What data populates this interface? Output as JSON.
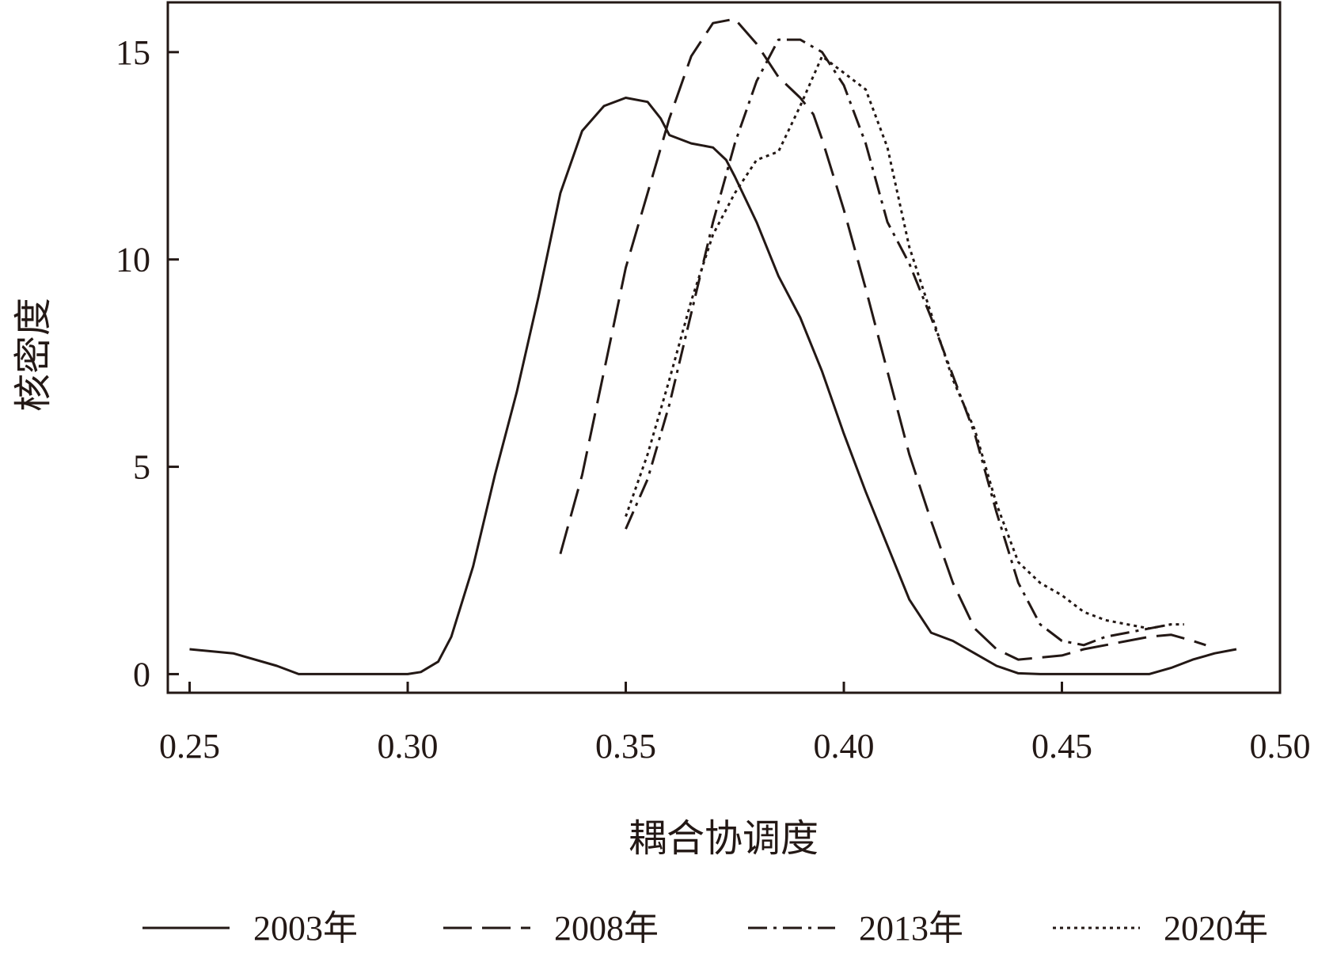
{
  "chart_data": {
    "type": "line",
    "title": "",
    "xlabel": "耦合协调度",
    "ylabel": "核密度",
    "xlim": [
      0.245,
      0.5
    ],
    "ylim": [
      -0.45,
      16.2
    ],
    "x_ticks": [
      0.25,
      0.3,
      0.35,
      0.4,
      0.45,
      0.5
    ],
    "x_tick_labels": [
      "0.25",
      "0.30",
      "0.35",
      "0.40",
      "0.45",
      "0.50"
    ],
    "y_ticks": [
      0,
      5,
      10,
      15
    ],
    "y_tick_labels": [
      "0",
      "5",
      "10",
      "15"
    ],
    "grid": false,
    "legend_position": "bottom",
    "series": [
      {
        "name": "2003年",
        "dash": "solid",
        "x": [
          0.25,
          0.26,
          0.27,
          0.275,
          0.3,
          0.303,
          0.307,
          0.31,
          0.315,
          0.32,
          0.325,
          0.33,
          0.335,
          0.34,
          0.345,
          0.35,
          0.355,
          0.358,
          0.36,
          0.365,
          0.37,
          0.373,
          0.375,
          0.38,
          0.385,
          0.39,
          0.395,
          0.4,
          0.405,
          0.41,
          0.415,
          0.42,
          0.425,
          0.43,
          0.435,
          0.44,
          0.445,
          0.45,
          0.46,
          0.47,
          0.475,
          0.48,
          0.485,
          0.49
        ],
        "y": [
          0.6,
          0.5,
          0.2,
          0.0,
          0.0,
          0.05,
          0.3,
          0.9,
          2.6,
          4.8,
          6.8,
          9.1,
          11.6,
          13.1,
          13.7,
          13.9,
          13.8,
          13.4,
          13.0,
          12.8,
          12.7,
          12.4,
          12.0,
          10.9,
          9.6,
          8.6,
          7.3,
          5.8,
          4.4,
          3.1,
          1.8,
          1.0,
          0.8,
          0.5,
          0.2,
          0.02,
          0.0,
          0.0,
          0.0,
          0.0,
          0.15,
          0.35,
          0.5,
          0.6
        ]
      },
      {
        "name": "2008年",
        "dash": "long-dash",
        "x": [
          0.335,
          0.34,
          0.345,
          0.35,
          0.355,
          0.36,
          0.365,
          0.37,
          0.375,
          0.38,
          0.385,
          0.39,
          0.393,
          0.395,
          0.4,
          0.405,
          0.41,
          0.415,
          0.42,
          0.425,
          0.43,
          0.435,
          0.44,
          0.445,
          0.45,
          0.455,
          0.46,
          0.465,
          0.47,
          0.475,
          0.48,
          0.483
        ],
        "y": [
          2.9,
          4.8,
          7.3,
          9.8,
          11.6,
          13.4,
          14.9,
          15.7,
          15.8,
          15.2,
          14.4,
          13.9,
          13.5,
          12.9,
          11.2,
          9.3,
          7.3,
          5.3,
          3.7,
          2.2,
          1.1,
          0.6,
          0.35,
          0.4,
          0.45,
          0.6,
          0.7,
          0.8,
          0.9,
          0.95,
          0.8,
          0.7
        ]
      },
      {
        "name": "2013年",
        "dash": "dash-dot",
        "x": [
          0.35,
          0.355,
          0.36,
          0.365,
          0.37,
          0.375,
          0.38,
          0.385,
          0.39,
          0.395,
          0.4,
          0.405,
          0.41,
          0.415,
          0.42,
          0.425,
          0.43,
          0.435,
          0.44,
          0.445,
          0.45,
          0.455,
          0.46,
          0.465,
          0.47,
          0.475
        ],
        "y": [
          3.5,
          4.7,
          6.5,
          8.7,
          10.9,
          12.8,
          14.3,
          15.3,
          15.3,
          15.0,
          14.2,
          12.8,
          10.9,
          9.9,
          8.6,
          7.2,
          5.8,
          3.9,
          2.2,
          1.2,
          0.8,
          0.7,
          0.9,
          1.0,
          1.1,
          1.2
        ]
      },
      {
        "name": "2020年",
        "dash": "dotted",
        "x": [
          0.35,
          0.355,
          0.36,
          0.365,
          0.37,
          0.375,
          0.38,
          0.385,
          0.39,
          0.395,
          0.4,
          0.405,
          0.41,
          0.415,
          0.42,
          0.425,
          0.43,
          0.435,
          0.44,
          0.445,
          0.45,
          0.455,
          0.46,
          0.465,
          0.47,
          0.475,
          0.478
        ],
        "y": [
          3.8,
          5.3,
          7.1,
          9.0,
          10.6,
          11.6,
          12.4,
          12.6,
          13.7,
          14.9,
          14.5,
          14.1,
          12.7,
          10.3,
          8.7,
          7.1,
          5.9,
          4.1,
          2.7,
          2.2,
          1.9,
          1.5,
          1.3,
          1.2,
          1.1,
          1.2,
          1.2
        ]
      }
    ]
  }
}
